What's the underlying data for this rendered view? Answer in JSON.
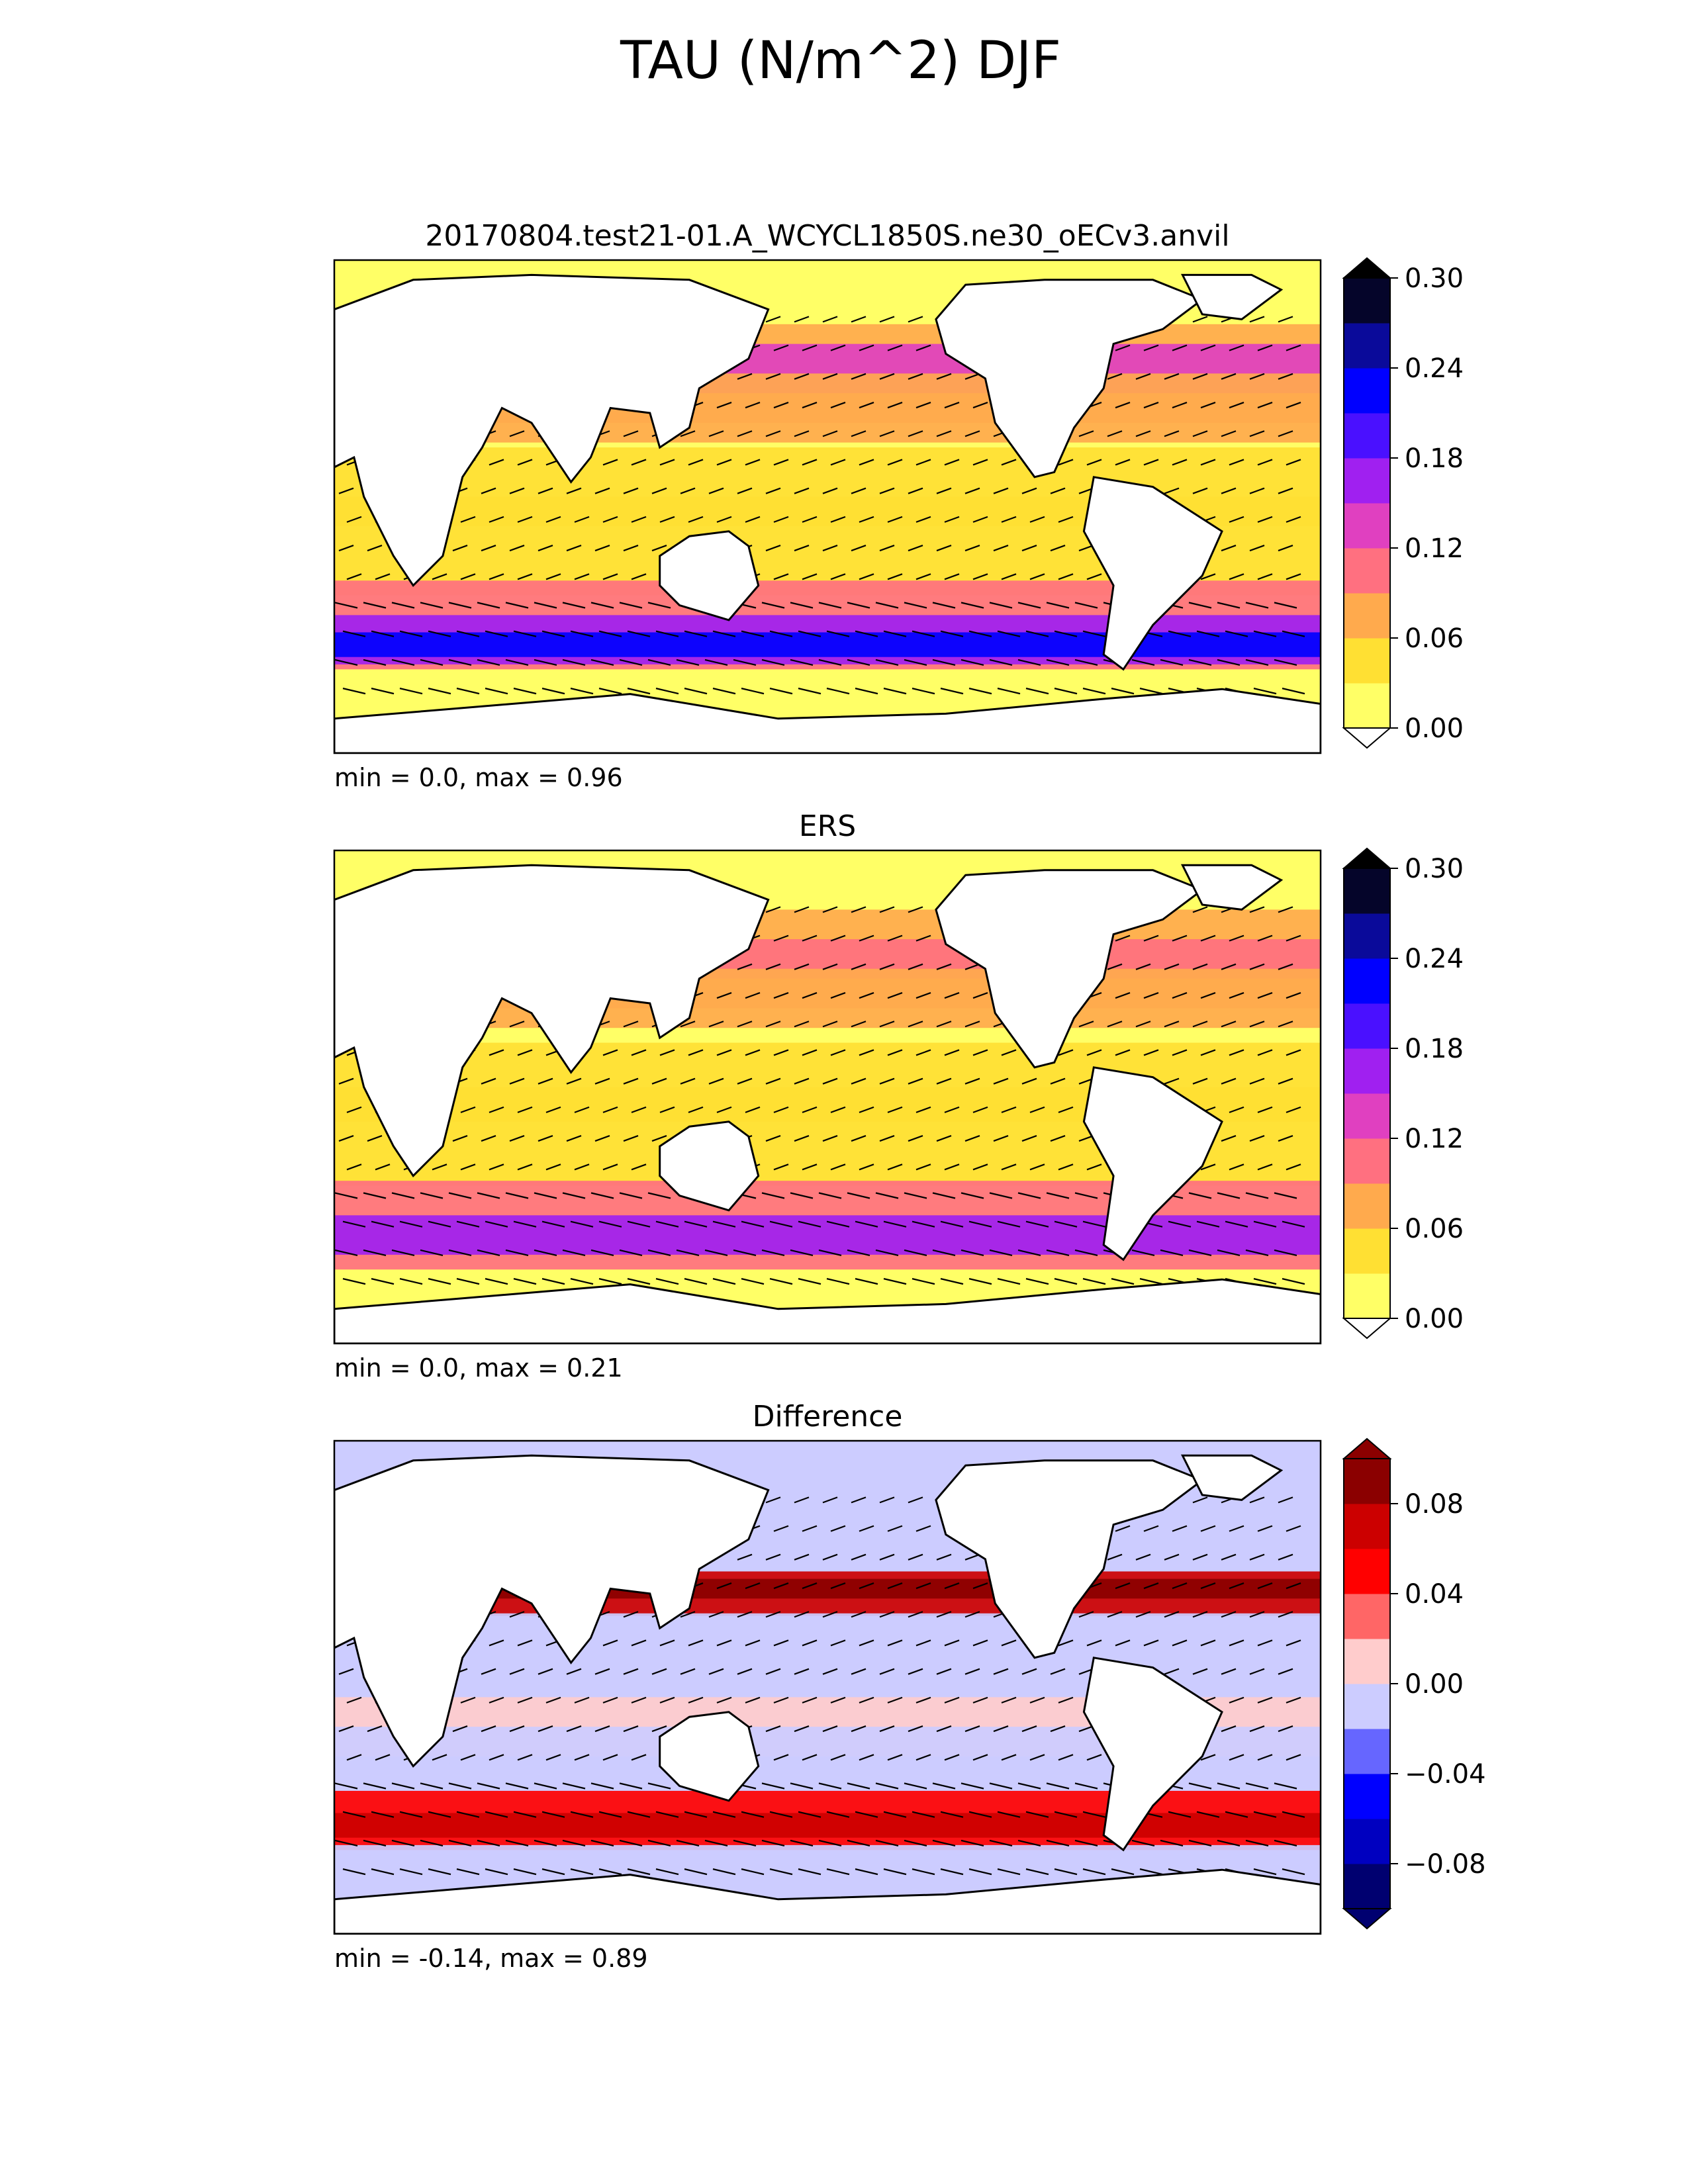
{
  "figure": {
    "title": "TAU (N/m^2) DJF"
  },
  "colors": {
    "model_levels": [
      "#ffff66",
      "#ffe033",
      "#ffaa4d",
      "#ff7080",
      "#e040c0",
      "#a020f0",
      "#4a10ff",
      "#0000ff",
      "#0a0a9a",
      "#05052a"
    ],
    "diff_levels": [
      "#000070",
      "#0000c0",
      "#0000ff",
      "#6666ff",
      "#ccccff",
      "#ffcccc",
      "#ff6666",
      "#ff0000",
      "#cc0000",
      "#8b0000"
    ],
    "land": "#ffffff",
    "coast": "#000000"
  },
  "chart_data": [
    {
      "type": "heatmap",
      "title": "20170804.test21-01.A_WCYCL1850S.ne30_oECv3.anvil",
      "stats": "min = 0.0, max = 0.96",
      "colorbar": {
        "min": 0.0,
        "max": 0.3,
        "ticks": [
          "0.00",
          "0.06",
          "0.12",
          "0.18",
          "0.24",
          "0.30"
        ],
        "extend": "both"
      },
      "grid": false
    },
    {
      "type": "heatmap",
      "title": "ERS",
      "stats": "min = 0.0, max = 0.21",
      "colorbar": {
        "min": 0.0,
        "max": 0.3,
        "ticks": [
          "0.00",
          "0.06",
          "0.12",
          "0.18",
          "0.24",
          "0.30"
        ],
        "extend": "both"
      },
      "grid": false
    },
    {
      "type": "heatmap",
      "title": "Difference",
      "stats": "min = -0.14, max = 0.89",
      "colorbar": {
        "min": -0.1,
        "max": 0.1,
        "ticks": [
          "−0.08",
          "−0.04",
          "0.00",
          "0.04",
          "0.08"
        ],
        "extend": "both"
      },
      "grid": false
    }
  ]
}
